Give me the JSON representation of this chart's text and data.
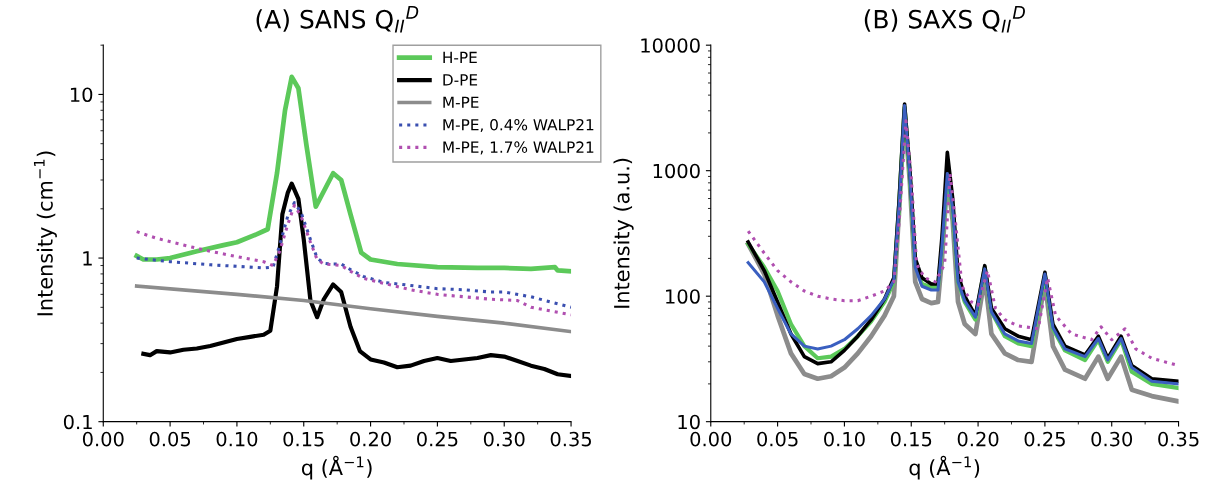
{
  "chart_data": [
    {
      "type": "line",
      "title": "(A) SANS Q$_{II}$$^{D}$",
      "xlabel": "q (Å$^{−1}$)",
      "ylabel": "Intensity (cm$^{−1}$)",
      "log": "y",
      "grid": false,
      "legend": "top right",
      "xlim": [
        0,
        0.35
      ],
      "ylim": [
        0.1,
        20
      ],
      "xticks": [
        {
          "value": 0,
          "label": "0.00"
        },
        {
          "value": 0.05,
          "label": "0.05"
        },
        {
          "value": 0.1,
          "label": "0.10"
        },
        {
          "value": 0.15,
          "label": "0.15"
        },
        {
          "value": 0.2,
          "label": "0.20"
        },
        {
          "value": 0.25,
          "label": "0.25"
        },
        {
          "value": 0.3,
          "label": "0.30"
        },
        {
          "value": 0.35,
          "label": "0.35"
        }
      ],
      "yticks": [
        0.1,
        1,
        10
      ],
      "series": [
        {
          "name": "H-PE",
          "color": "#5cc95a",
          "line_style": "solid",
          "x": [
            0.025,
            0.03,
            0.04,
            0.05,
            0.07,
            0.09,
            0.1,
            0.115,
            0.123,
            0.13,
            0.136,
            0.141,
            0.146,
            0.152,
            0.159,
            0.165,
            0.172,
            0.178,
            0.185,
            0.193,
            0.2,
            0.22,
            0.25,
            0.28,
            0.3,
            0.32,
            0.338,
            0.34,
            0.35
          ],
          "values": [
            1.03,
            0.98,
            0.98,
            1.0,
            1.1,
            1.2,
            1.25,
            1.4,
            1.5,
            3.3,
            8,
            12.8,
            10.9,
            4.9,
            2.06,
            2.56,
            3.3,
            3.0,
            1.85,
            1.08,
            0.98,
            0.92,
            0.88,
            0.87,
            0.87,
            0.86,
            0.88,
            0.84,
            0.83
          ]
        },
        {
          "name": "D-PE",
          "color": "#000000",
          "line_style": "solid",
          "x": [
            0.03,
            0.035,
            0.04,
            0.05,
            0.06,
            0.07,
            0.08,
            0.09,
            0.1,
            0.11,
            0.12,
            0.125,
            0.13,
            0.134,
            0.138,
            0.141,
            0.146,
            0.15,
            0.155,
            0.16,
            0.165,
            0.172,
            0.178,
            0.185,
            0.192,
            0.2,
            0.21,
            0.22,
            0.23,
            0.24,
            0.25,
            0.26,
            0.27,
            0.28,
            0.29,
            0.3,
            0.31,
            0.32,
            0.33,
            0.34,
            0.35
          ],
          "values": [
            0.26,
            0.255,
            0.27,
            0.265,
            0.275,
            0.28,
            0.29,
            0.305,
            0.32,
            0.33,
            0.34,
            0.36,
            0.67,
            1.85,
            2.5,
            2.85,
            2.3,
            1.3,
            0.55,
            0.435,
            0.56,
            0.69,
            0.62,
            0.38,
            0.27,
            0.24,
            0.23,
            0.215,
            0.22,
            0.235,
            0.245,
            0.235,
            0.24,
            0.245,
            0.255,
            0.25,
            0.235,
            0.22,
            0.21,
            0.195,
            0.19
          ]
        },
        {
          "name": "M-PE",
          "color": "#8c8c8c",
          "line_style": "solid",
          "x": [
            0.025,
            0.1,
            0.15,
            0.2,
            0.25,
            0.3,
            0.35
          ],
          "values": [
            0.675,
            0.6,
            0.55,
            0.49,
            0.44,
            0.4,
            0.355
          ]
        },
        {
          "name": "M-PE, 0.4% WALP21",
          "color": "#3a4fb0",
          "line_style": "dotted",
          "x": [
            0.025,
            0.05,
            0.08,
            0.1,
            0.12,
            0.127,
            0.132,
            0.138,
            0.143,
            0.148,
            0.155,
            0.16,
            0.165,
            0.17,
            0.178,
            0.185,
            0.195,
            0.21,
            0.23,
            0.25,
            0.27,
            0.29,
            0.3,
            0.32,
            0.35
          ],
          "values": [
            1.0,
            0.95,
            0.91,
            0.89,
            0.87,
            0.88,
            1.2,
            1.8,
            2.18,
            1.9,
            1.3,
            1.0,
            0.93,
            0.92,
            0.92,
            0.85,
            0.77,
            0.71,
            0.68,
            0.65,
            0.64,
            0.62,
            0.62,
            0.58,
            0.5
          ]
        },
        {
          "name": "M-PE, 1.7% WALP21",
          "color": "#b04fb0",
          "line_style": "dotted",
          "x": [
            0.025,
            0.04,
            0.06,
            0.08,
            0.1,
            0.12,
            0.127,
            0.132,
            0.138,
            0.143,
            0.148,
            0.155,
            0.16,
            0.165,
            0.178,
            0.185,
            0.195,
            0.21,
            0.23,
            0.25,
            0.27,
            0.29,
            0.31,
            0.32,
            0.35
          ],
          "values": [
            1.45,
            1.32,
            1.2,
            1.1,
            1.02,
            0.95,
            0.9,
            1.1,
            1.6,
            2.1,
            1.8,
            1.25,
            0.98,
            0.92,
            0.9,
            0.83,
            0.75,
            0.7,
            0.64,
            0.6,
            0.58,
            0.56,
            0.55,
            0.5,
            0.45
          ]
        }
      ]
    },
    {
      "type": "line",
      "title": "(B) SAXS Q$_{II}$$^{D}$",
      "xlabel": "q (Å$^{−1}$)",
      "ylabel": "Intensity (a.u.)",
      "log": "y",
      "grid": false,
      "xlim": [
        0,
        0.35
      ],
      "ylim": [
        10,
        10000
      ],
      "xticks": [
        {
          "value": 0,
          "label": "0.00"
        },
        {
          "value": 0.05,
          "label": "0.05"
        },
        {
          "value": 0.1,
          "label": "0.10"
        },
        {
          "value": 0.15,
          "label": "0.15"
        },
        {
          "value": 0.2,
          "label": "0.20"
        },
        {
          "value": 0.25,
          "label": "0.25"
        },
        {
          "value": 0.3,
          "label": "0.30"
        },
        {
          "value": 0.35,
          "label": "0.35"
        }
      ],
      "yticks": [
        10,
        100,
        1000,
        10000
      ],
      "series": [
        {
          "color": "#8c8c8c",
          "line_style": "solid",
          "x": [
            0.028,
            0.04,
            0.05,
            0.06,
            0.07,
            0.08,
            0.09,
            0.1,
            0.11,
            0.12,
            0.13,
            0.137,
            0.141,
            0.145,
            0.149,
            0.153,
            0.158,
            0.165,
            0.17,
            0.173,
            0.177,
            0.181,
            0.185,
            0.19,
            0.198,
            0.205,
            0.21,
            0.22,
            0.23,
            0.24,
            0.25,
            0.256,
            0.265,
            0.28,
            0.29,
            0.297,
            0.307,
            0.315,
            0.33,
            0.35
          ],
          "values": [
            260,
            150,
            70,
            35,
            24,
            22,
            23,
            27,
            35,
            48,
            70,
            100,
            500,
            3000,
            800,
            130,
            95,
            88,
            90,
            200,
            900,
            400,
            90,
            60,
            50,
            140,
            50,
            35,
            31,
            30,
            130,
            40,
            26,
            22,
            33,
            22,
            33,
            18,
            16,
            14.5
          ]
        },
        {
          "color": "#5cc95a",
          "line_style": "solid",
          "x": [
            0.028,
            0.04,
            0.05,
            0.06,
            0.07,
            0.08,
            0.09,
            0.1,
            0.11,
            0.12,
            0.13,
            0.137,
            0.141,
            0.145,
            0.149,
            0.153,
            0.158,
            0.165,
            0.17,
            0.173,
            0.177,
            0.181,
            0.185,
            0.19,
            0.198,
            0.205,
            0.21,
            0.22,
            0.23,
            0.24,
            0.25,
            0.256,
            0.265,
            0.28,
            0.29,
            0.297,
            0.307,
            0.315,
            0.33,
            0.35
          ],
          "values": [
            260,
            170,
            110,
            60,
            40,
            32,
            33,
            38,
            48,
            63,
            90,
            130,
            550,
            3200,
            900,
            180,
            125,
            118,
            118,
            250,
            900,
            500,
            130,
            90,
            65,
            170,
            75,
            48,
            42,
            40,
            145,
            55,
            37,
            31,
            45,
            30,
            45,
            25,
            20,
            18.5
          ]
        },
        {
          "color": "#000000",
          "line_style": "solid",
          "x": [
            0.028,
            0.04,
            0.05,
            0.06,
            0.07,
            0.08,
            0.09,
            0.1,
            0.11,
            0.12,
            0.13,
            0.137,
            0.141,
            0.145,
            0.149,
            0.153,
            0.158,
            0.165,
            0.17,
            0.173,
            0.177,
            0.181,
            0.185,
            0.19,
            0.198,
            0.205,
            0.21,
            0.22,
            0.23,
            0.24,
            0.25,
            0.256,
            0.265,
            0.28,
            0.29,
            0.297,
            0.307,
            0.315,
            0.33,
            0.35
          ],
          "values": [
            270,
            160,
            90,
            50,
            33,
            29,
            30,
            37,
            48,
            65,
            95,
            140,
            600,
            3400,
            1000,
            200,
            140,
            125,
            125,
            300,
            1400,
            600,
            150,
            100,
            70,
            175,
            80,
            55,
            48,
            45,
            155,
            60,
            40,
            34,
            48,
            32,
            48,
            28,
            22,
            21
          ]
        },
        {
          "color": "#3a5fc0",
          "line_style": "solid",
          "x": [
            0.028,
            0.04,
            0.05,
            0.06,
            0.07,
            0.08,
            0.09,
            0.1,
            0.11,
            0.12,
            0.13,
            0.137,
            0.141,
            0.145,
            0.149,
            0.153,
            0.158,
            0.165,
            0.17,
            0.173,
            0.177,
            0.181,
            0.185,
            0.19,
            0.198,
            0.205,
            0.21,
            0.22,
            0.23,
            0.24,
            0.25,
            0.256,
            0.265,
            0.28,
            0.29,
            0.297,
            0.307,
            0.315,
            0.33,
            0.35
          ],
          "values": [
            185,
            130,
            80,
            50,
            40,
            38,
            40,
            45,
            55,
            70,
            95,
            135,
            550,
            3300,
            900,
            170,
            120,
            112,
            112,
            250,
            950,
            500,
            130,
            92,
            68,
            165,
            75,
            50,
            44,
            42,
            150,
            56,
            38,
            33,
            46,
            31,
            46,
            27,
            21,
            20
          ]
        },
        {
          "color": "#b04fb0",
          "line_style": "dotted",
          "x": [
            0.028,
            0.04,
            0.05,
            0.06,
            0.07,
            0.08,
            0.09,
            0.1,
            0.11,
            0.12,
            0.13,
            0.137,
            0.141,
            0.146,
            0.15,
            0.154,
            0.16,
            0.168,
            0.175,
            0.179,
            0.183,
            0.188,
            0.195,
            0.2,
            0.207,
            0.213,
            0.22,
            0.23,
            0.245,
            0.252,
            0.258,
            0.27,
            0.285,
            0.292,
            0.3,
            0.31,
            0.318,
            0.33,
            0.35
          ],
          "values": [
            330,
            220,
            160,
            130,
            110,
            100,
            95,
            92,
            92,
            100,
            110,
            130,
            400,
            2500,
            900,
            180,
            140,
            130,
            180,
            950,
            400,
            120,
            90,
            85,
            160,
            80,
            65,
            58,
            55,
            140,
            70,
            50,
            45,
            57,
            45,
            55,
            38,
            32,
            28
          ]
        }
      ]
    }
  ]
}
